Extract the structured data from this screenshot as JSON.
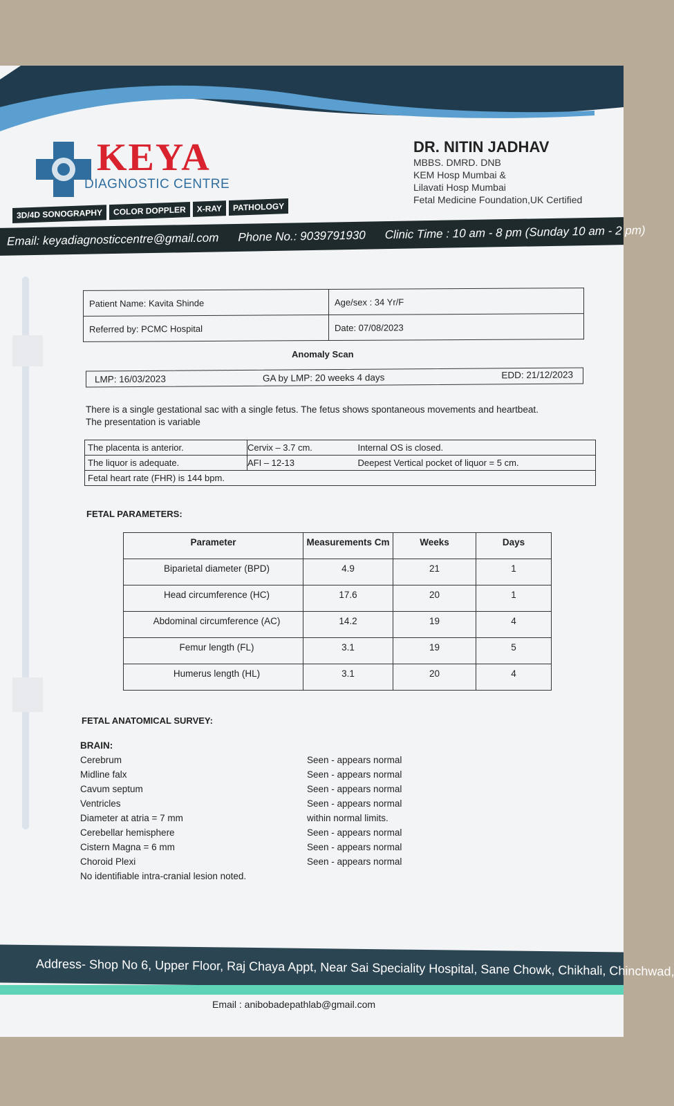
{
  "header": {
    "brand": "KEYA",
    "subtitle": "DIAGNOSTIC CENTRE",
    "services": [
      "3D/4D SONOGRAPHY",
      "COLOR DOPPLER",
      "X-RAY",
      "PATHOLOGY"
    ],
    "doctor": {
      "name": "DR. NITIN JADHAV",
      "lines": [
        "MBBS. DMRD. DNB",
        "KEM Hosp Mumbai &",
        "Lilavati Hosp Mumbai",
        "Fetal Medicine Foundation,UK Certified"
      ]
    },
    "email": "Email: keyadiagnosticcentre@gmail.com",
    "phone": "Phone No.: 9039791930",
    "clinic_time": "Clinic Time : 10 am - 8 pm (Sunday 10 am - 2 pm)"
  },
  "patient": {
    "name": "Patient Name: Kavita Shinde",
    "age_sex": "Age/sex : 34 Yr/F",
    "referred": "Referred by: PCMC Hospital",
    "date": "Date: 07/08/2023"
  },
  "report_title": "Anomaly Scan",
  "dates": {
    "lmp": "LMP: 16/03/2023",
    "ga": "GA by LMP: 20 weeks 4 days",
    "edd": "EDD: 21/12/2023"
  },
  "summary": "There is a single gestational sac with a single fetus. The fetus shows spontaneous movements and heartbeat. The presentation is variable",
  "findings": [
    [
      "The placenta is anterior.",
      "Cervix – 3.7 cm.",
      "Internal OS is closed."
    ],
    [
      "The liquor is adequate.",
      "AFI – 12-13",
      "Deepest Vertical pocket of liquor = 5 cm."
    ],
    [
      "Fetal heart rate (FHR) is 144 bpm.",
      "",
      ""
    ]
  ],
  "fetal_parameters": {
    "heading": "FETAL PARAMETERS:",
    "columns": [
      "Parameter",
      "Measurements Cm",
      "Weeks",
      "Days"
    ],
    "rows": [
      [
        "Biparietal diameter (BPD)",
        "4.9",
        "21",
        "1"
      ],
      [
        "Head circumference (HC)",
        "17.6",
        "20",
        "1"
      ],
      [
        "Abdominal circumference (AC)",
        "14.2",
        "19",
        "4"
      ],
      [
        "Femur length (FL)",
        "3.1",
        "19",
        "5"
      ],
      [
        "Humerus length (HL)",
        "3.1",
        "20",
        "4"
      ]
    ]
  },
  "survey": {
    "heading": "FETAL ANATOMICAL SURVEY:",
    "section": "BRAIN:",
    "items": [
      [
        "Cerebrum",
        "Seen - appears normal"
      ],
      [
        "Midline falx",
        "Seen - appears normal"
      ],
      [
        "Cavum septum",
        "Seen - appears normal"
      ],
      [
        "Ventricles",
        "Seen - appears normal"
      ],
      [
        "Diameter at atria = 7 mm",
        "within normal limits."
      ],
      [
        "Cerebellar hemisphere",
        "Seen - appears normal"
      ],
      [
        "Cistern Magna = 6 mm",
        "Seen - appears normal"
      ],
      [
        "Choroid Plexi",
        "Seen - appears normal"
      ]
    ],
    "note": "No identifiable intra-cranial lesion noted."
  },
  "footer": {
    "address": "Address- Shop No 6, Upper Floor, Raj Chaya Appt, Near Sai Speciality Hospital, Sane Chowk, Chikhali, Chinchwad,",
    "email": "Email : anibobadepathlab@gmail.com"
  },
  "colors": {
    "brand_red": "#d8232e",
    "brand_blue": "#2f6e9f",
    "band_dark": "#1e2a2c"
  }
}
